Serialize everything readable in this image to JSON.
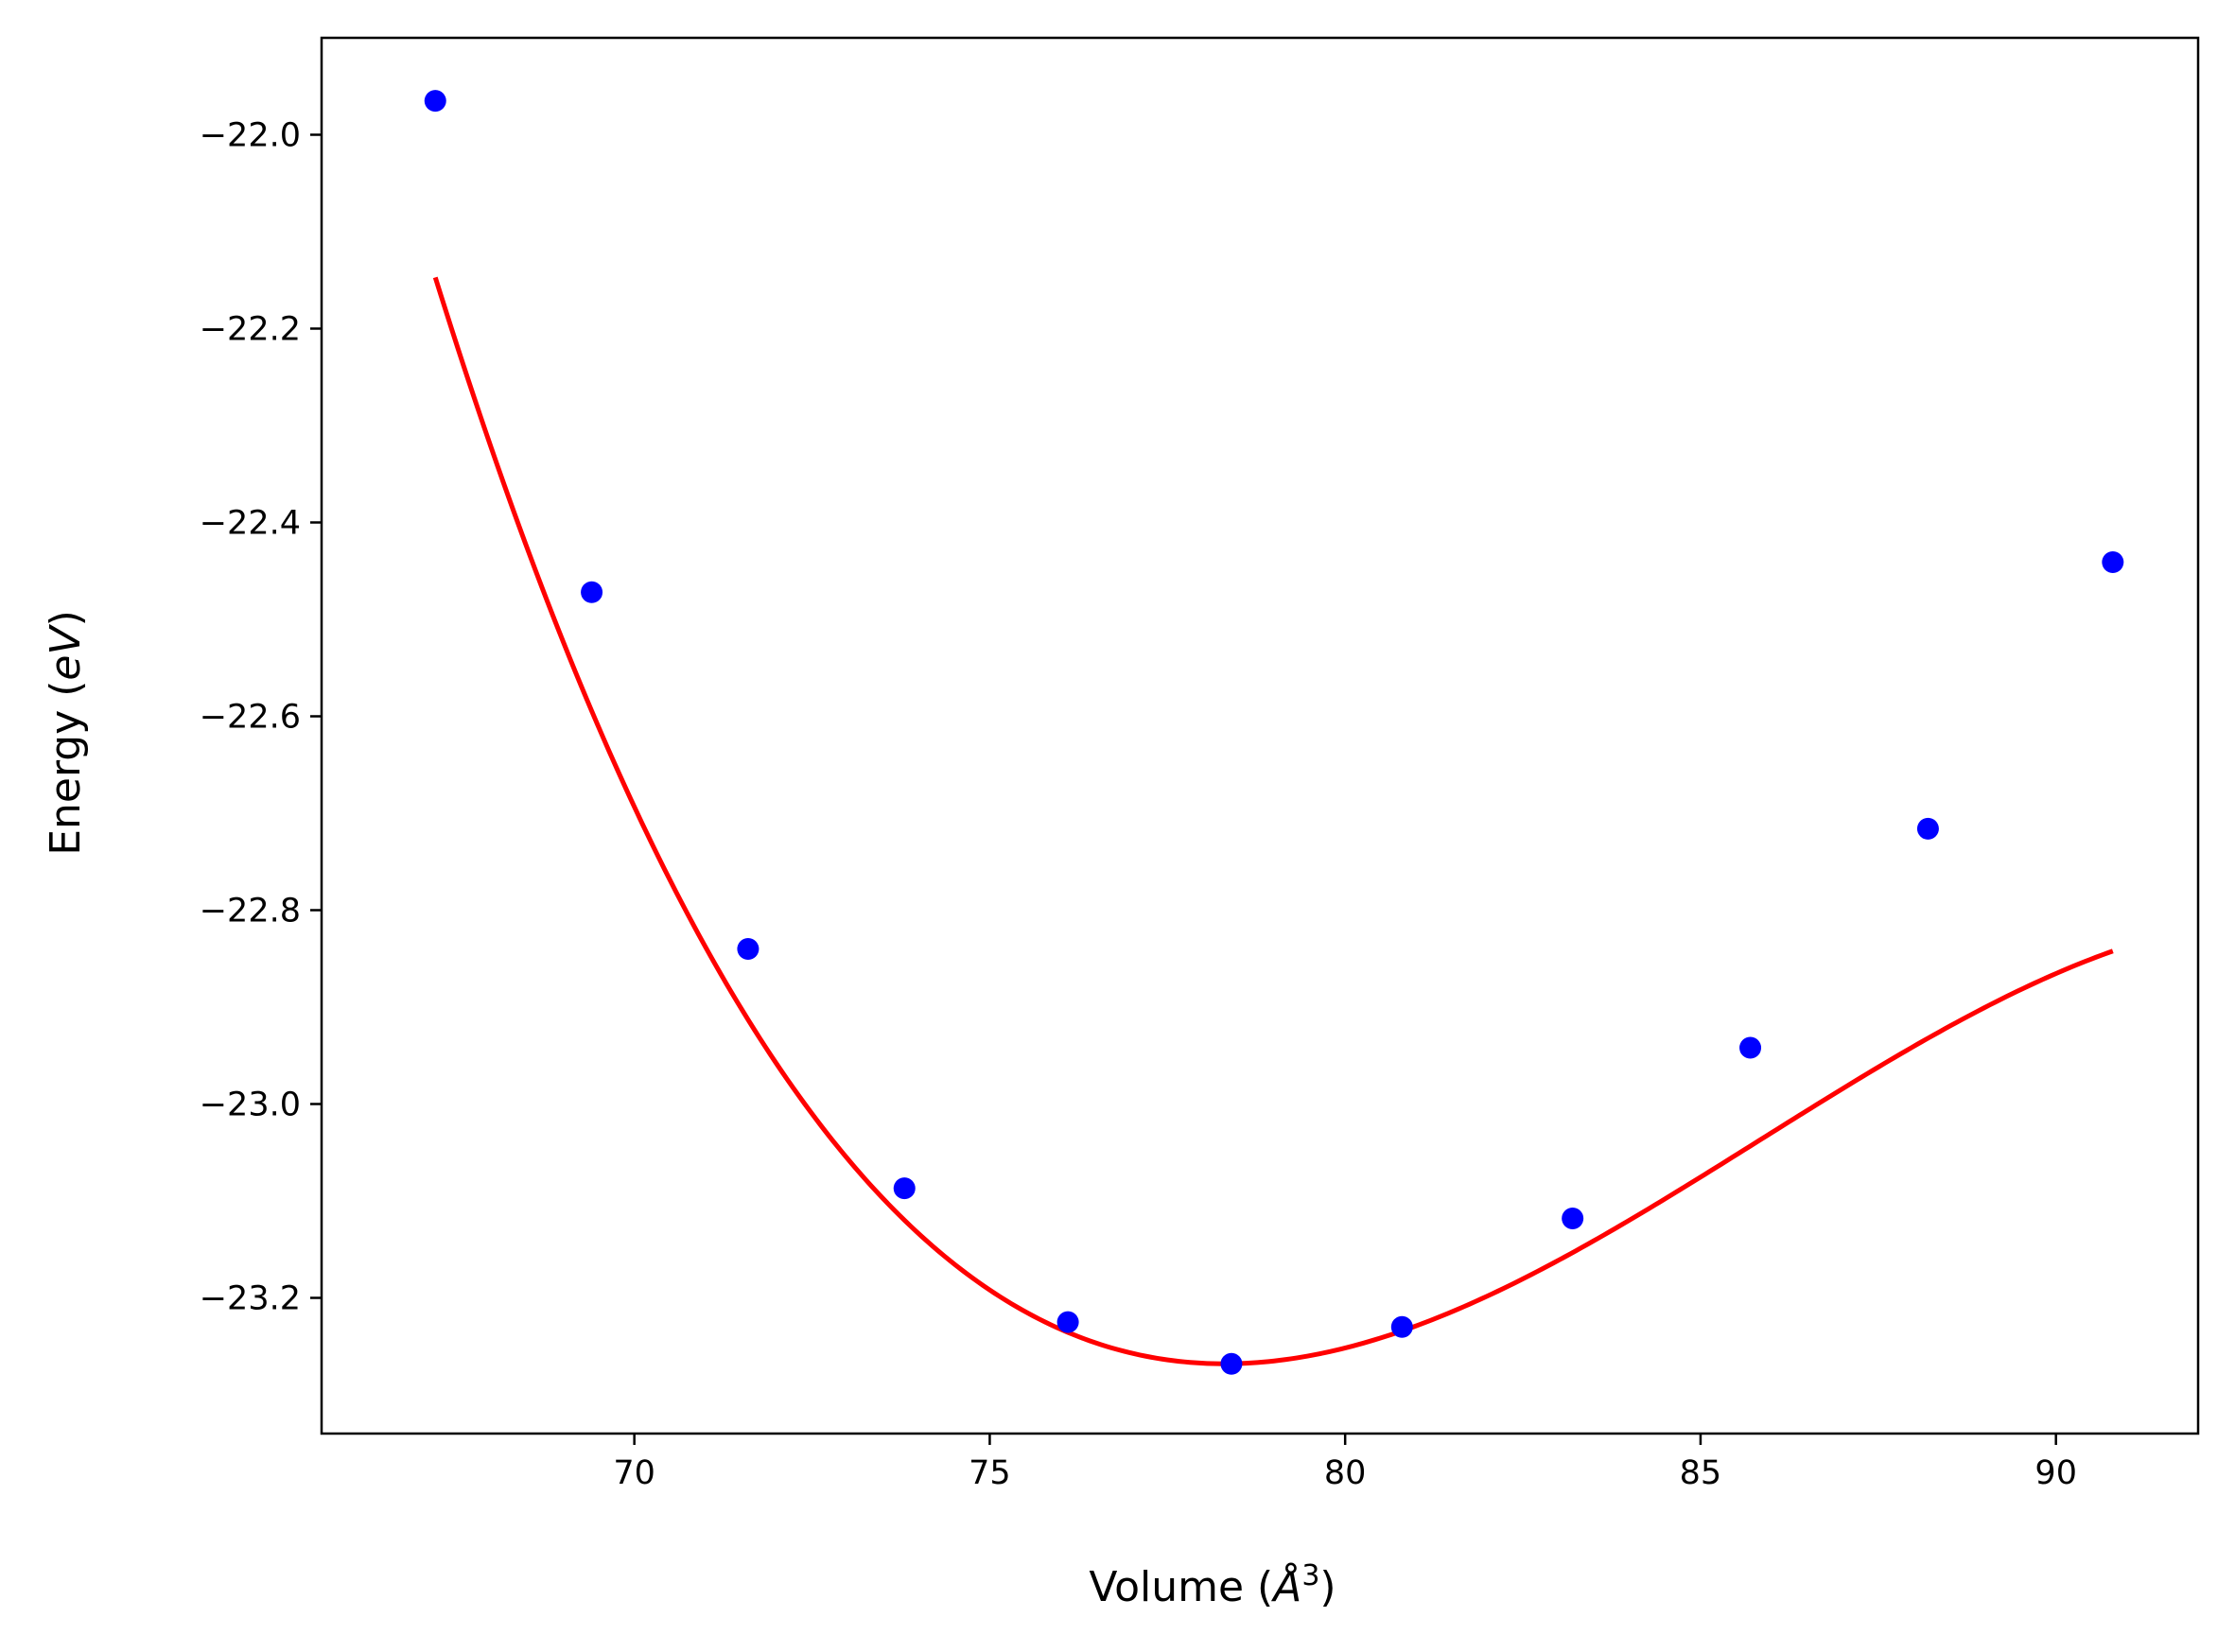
{
  "chart_data": {
    "type": "line",
    "title": "",
    "xlabel": {
      "prefix": "Volume (",
      "symbol": "Å",
      "power": "3",
      "suffix": ")"
    },
    "ylabel": {
      "prefix": "Energy (",
      "unit": "eV",
      "suffix": ")"
    },
    "xlim": [
      65.6,
      92.0
    ],
    "ylim": [
      -23.34,
      -21.9
    ],
    "xticks": [
      70,
      75,
      80,
      85,
      90
    ],
    "xtick_labels": [
      "70",
      "75",
      "80",
      "85",
      "90"
    ],
    "yticks": [
      -22.0,
      -22.2,
      -22.4,
      -22.6,
      -22.8,
      -23.0,
      -23.2
    ],
    "ytick_labels": [
      "−22.0",
      "−22.2",
      "−22.4",
      "−22.6",
      "−22.8",
      "−23.0",
      "−23.2"
    ],
    "grid": false,
    "series": [
      {
        "kind": "scatter",
        "color": "#0000ff",
        "x": [
          67.2,
          69.4,
          71.6,
          73.8,
          76.1,
          78.4,
          80.8,
          83.2,
          85.7,
          88.2,
          90.8
        ],
        "y": [
          -21.965,
          -22.472,
          -22.84,
          -23.087,
          -23.225,
          -23.268,
          -23.23,
          -23.118,
          -22.942,
          -22.716,
          -22.441
        ]
      },
      {
        "kind": "fit",
        "color": "#ff0000",
        "curve": {
          "V0": 78.3,
          "E0": -23.268,
          "a2": 0.0061,
          "a3": -0.00027
        }
      }
    ]
  }
}
